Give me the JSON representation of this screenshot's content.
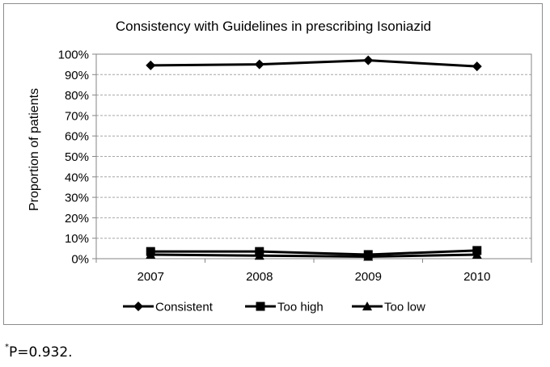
{
  "chart_data": {
    "type": "line",
    "title": "Consistency with Guidelines in prescribing Isoniazid",
    "xlabel": "",
    "ylabel": "Proportion of patients",
    "categories": [
      "2007",
      "2008",
      "2009",
      "2010"
    ],
    "y_ticks": [
      "0%",
      "10%",
      "20%",
      "30%",
      "40%",
      "50%",
      "60%",
      "70%",
      "80%",
      "90%",
      "100%"
    ],
    "ylim": [
      0,
      100
    ],
    "grid": true,
    "legend_position": "bottom",
    "series": [
      {
        "name": "Consistent",
        "marker": "diamond",
        "values": [
          94.5,
          95,
          97,
          94
        ]
      },
      {
        "name": "Too high",
        "marker": "square",
        "values": [
          3.5,
          3.5,
          2,
          4
        ]
      },
      {
        "name": "Too low",
        "marker": "triangle",
        "values": [
          2,
          1.5,
          1,
          2
        ]
      }
    ],
    "colors": {
      "line": "#000000",
      "grid": "#a6a6a6",
      "axis": "#868686"
    }
  },
  "footnote": {
    "marker": "*",
    "text": "P=0.932."
  }
}
